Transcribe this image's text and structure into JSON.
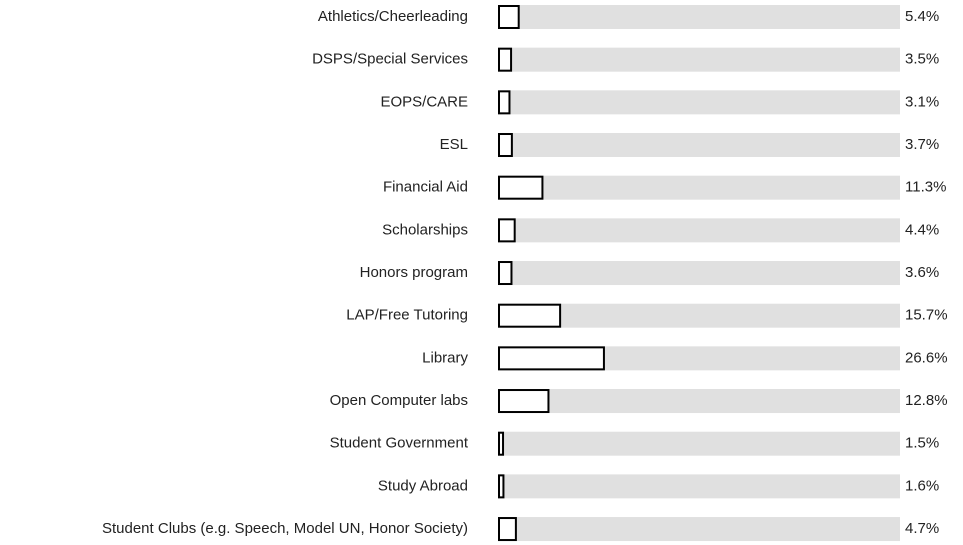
{
  "chart_data": {
    "type": "bar",
    "orientation": "horizontal",
    "categories": [
      "Athletics/Cheerleading",
      "DSPS/Special Services",
      "EOPS/CARE",
      "ESL",
      "Financial Aid",
      "Scholarships",
      "Honors program",
      "LAP/Free Tutoring",
      "Library",
      "Open Computer labs",
      "Student Government",
      "Study Abroad",
      "Student Clubs (e.g. Speech, Model UN, Honor Society)"
    ],
    "values": [
      5.4,
      3.5,
      3.1,
      3.7,
      11.3,
      4.4,
      3.6,
      15.7,
      26.6,
      12.8,
      1.5,
      1.6,
      4.7
    ],
    "value_labels": [
      "5.4%",
      "3.5%",
      "3.1%",
      "3.7%",
      "11.3%",
      "4.4%",
      "3.6%",
      "15.7%",
      "26.6%",
      "12.8%",
      "1.5%",
      "1.6%",
      "4.7%"
    ],
    "color": "#ffffff",
    "track_color": "#e0e0e0",
    "xlim": [
      0,
      100
    ]
  }
}
